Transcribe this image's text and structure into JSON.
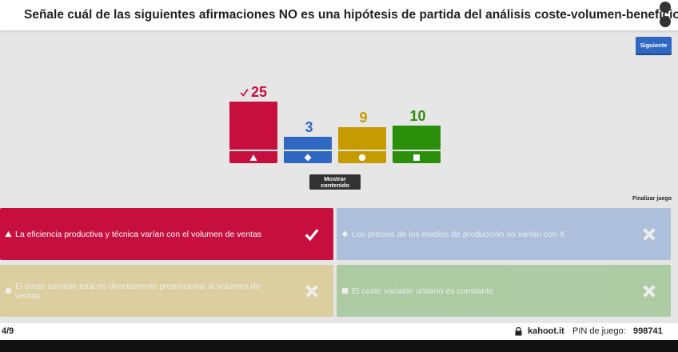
{
  "header": {
    "question": "Señale cuál de las siguientes afirmaciones NO es una hipótesis de partida del análisis coste-volumen-beneficio:"
  },
  "buttons": {
    "next": "Siguiente",
    "show_content": "Mostrar contenido",
    "end_game": "Finalizar juego"
  },
  "results": {
    "bars": [
      {
        "value": 25,
        "color": "#c60f3f",
        "correct": true
      },
      {
        "value": 3,
        "color": "#2e68c2",
        "correct": false
      },
      {
        "value": 9,
        "color": "#c59b00",
        "correct": false
      },
      {
        "value": 10,
        "color": "#2b8f0c",
        "correct": false
      }
    ]
  },
  "answers": [
    {
      "text": "La eficiencia productiva y técnica varían con el volumen de ventas",
      "color": "#c60f3f",
      "correct": true
    },
    {
      "text": "Los precios de los medios de producción no varían con X",
      "color": "#2e68c2",
      "correct": false
    },
    {
      "text": "El coste variable total es directamente proporcional al volumen de ventas",
      "color": "#c59b00",
      "correct": false
    },
    {
      "text": "El coste variable unitario es constante",
      "color": "#2b8f0c",
      "correct": false
    }
  ],
  "footer": {
    "progress": "4/9",
    "site": "kahoot.it",
    "pin_label": "PIN de juego:",
    "pin": "998741"
  }
}
